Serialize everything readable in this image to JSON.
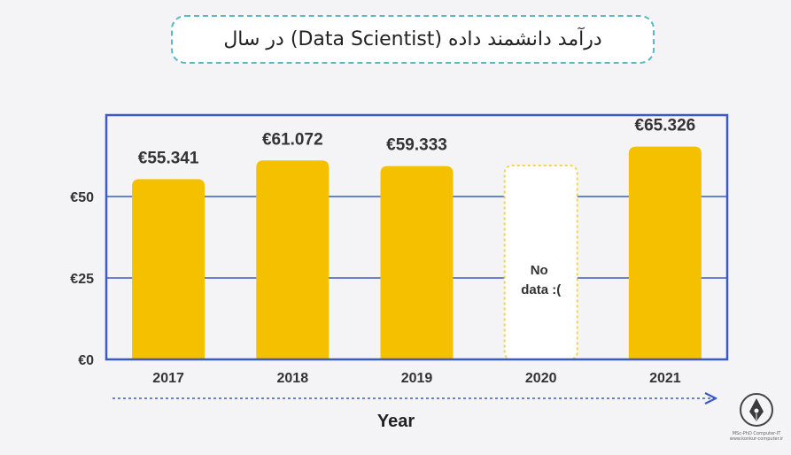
{
  "header": {
    "title": "درآمد دانشمند داده (Data Scientist) در سال"
  },
  "chart_data": {
    "type": "bar",
    "categories": [
      "2017",
      "2018",
      "2019",
      "2020",
      "2021"
    ],
    "values": [
      55.341,
      61.072,
      59.333,
      null,
      65.326
    ],
    "data_labels": [
      "€55.341",
      "€61.072",
      "€59.333",
      "",
      "€65.326"
    ],
    "missing_label_lines": [
      "No",
      "data :("
    ],
    "y_ticks": [
      0,
      25,
      50
    ],
    "y_tick_labels": [
      "€0",
      "€25",
      "€50"
    ],
    "ylim": [
      0,
      75
    ],
    "xlabel": "Year",
    "ylabel": "",
    "grid": true,
    "bar_color": "#f5c000",
    "frame_color": "#3a5bc7",
    "missing_outline_color": "#f5d24a"
  },
  "logo": {
    "line1": "MSc-PhD Computer-IT",
    "line2": "www.konkur-computer.ir"
  }
}
